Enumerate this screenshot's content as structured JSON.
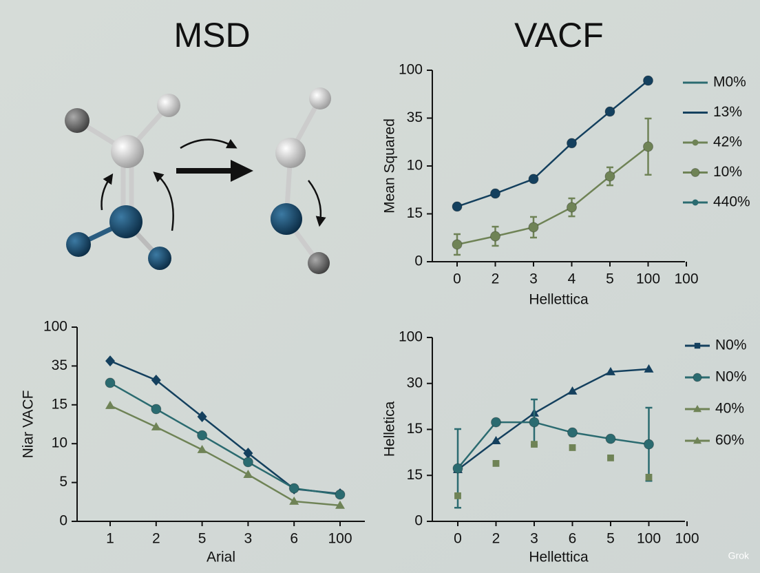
{
  "titles": {
    "left": "MSD",
    "right": "VACF"
  },
  "watermark": "Grok",
  "chart_data": [
    {
      "type": "line",
      "xlabel": "Hellettica",
      "ylabel": "Mean Squared",
      "categories": [
        "0",
        "2",
        "3",
        "4",
        "5",
        "100",
        "100"
      ],
      "ylim": [
        0,
        100
      ],
      "yticks": [
        0,
        {
          "value": 25,
          "label": "15"
        },
        {
          "value": 50,
          "label": "10"
        },
        {
          "value": 75,
          "label": "35"
        },
        100
      ],
      "legend_position": "outside-right",
      "legend": [
        {
          "label": "M0%",
          "color": "#2b6b70",
          "marker": "none"
        },
        {
          "label": "13%",
          "color": "#14405e",
          "marker": "none"
        },
        {
          "label": "42%",
          "color": "#6f8356",
          "marker": "dot"
        },
        {
          "label": "10%",
          "color": "#6f8356",
          "marker": "circle"
        },
        {
          "label": "440%",
          "color": "#2b6b70",
          "marker": "dot"
        }
      ],
      "series": [
        {
          "color": "#14405e",
          "marker": "circle",
          "line": true,
          "values": [
            28.8,
            35.6,
            43.2,
            61.9,
            78.4,
            94.6,
            null
          ]
        },
        {
          "color": "#6f8356",
          "marker": "circle",
          "line": true,
          "values": [
            9.0,
            13.3,
            18.0,
            28.4,
            44.6,
            60.1,
            null
          ],
          "errors": [
            5.4,
            5.0,
            5.4,
            4.7,
            4.7,
            14.7,
            null
          ]
        }
      ]
    },
    {
      "type": "line",
      "xlabel": "Arial",
      "ylabel": "Niar VACF",
      "categories": [
        "1",
        "2",
        "5",
        "3",
        "6",
        "100"
      ],
      "ylim": [
        0,
        100
      ],
      "yticks": [
        0,
        {
          "value": 20,
          "label": "5"
        },
        {
          "value": 40,
          "label": "10"
        },
        {
          "value": 60,
          "label": "15"
        },
        {
          "value": 80,
          "label": "35"
        },
        100
      ],
      "series": [
        {
          "color": "#14405e",
          "marker": "diamond",
          "line": true,
          "values": [
            82.6,
            72.7,
            53.9,
            35.1,
            16.7,
            14.2
          ]
        },
        {
          "color": "#2b6b70",
          "marker": "circle",
          "line": true,
          "values": [
            71.3,
            57.8,
            44.3,
            30.5,
            17.0,
            13.8
          ]
        },
        {
          "color": "#6f8356",
          "marker": "triangle",
          "line": true,
          "values": [
            59.6,
            48.6,
            36.9,
            24.1,
            10.3,
            8.2
          ]
        }
      ]
    },
    {
      "type": "line",
      "xlabel": "Hellettica",
      "ylabel": "Helletica",
      "categories": [
        "0",
        "2",
        "3",
        "6",
        "5",
        "100",
        "100"
      ],
      "ylim": [
        0,
        100
      ],
      "yticks": [
        0,
        {
          "value": 25,
          "label": "15"
        },
        {
          "value": 50,
          "label": "15"
        },
        {
          "value": 75,
          "label": "30"
        },
        100
      ],
      "legend_position": "outside-right",
      "legend": [
        {
          "label": "N0%",
          "color": "#14405e",
          "marker": "square"
        },
        {
          "label": "N0%",
          "color": "#2b6b70",
          "marker": "circle"
        },
        {
          "label": "40%",
          "color": "#6f8356",
          "marker": "triangle"
        },
        {
          "label": "60%",
          "color": "#6f8356",
          "marker": "triangle"
        }
      ],
      "series": [
        {
          "color": "#14405e",
          "marker": "triangle",
          "line": true,
          "values": [
            28.1,
            43.8,
            58.8,
            70.8,
            81.3,
            82.8,
            null
          ]
        },
        {
          "color": "#2b6b70",
          "marker": "circle",
          "line": true,
          "values": [
            28.8,
            53.9,
            53.9,
            48.3,
            44.9,
            41.9,
            null
          ],
          "errors": [
            21.4,
            null,
            12.4,
            null,
            null,
            19.9,
            null
          ]
        },
        {
          "color": "#6f8356",
          "marker": "square",
          "line": false,
          "values": [
            13.9,
            31.5,
            41.9,
            40.1,
            34.5,
            24.0,
            null
          ]
        }
      ]
    }
  ]
}
